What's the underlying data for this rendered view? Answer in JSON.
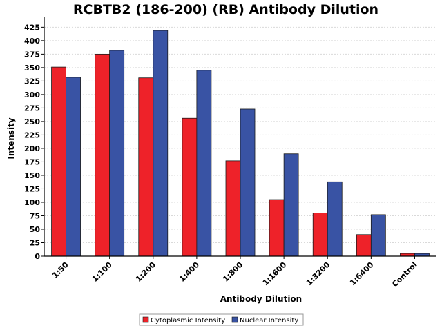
{
  "chart_data": {
    "type": "bar",
    "title": "RCBTB2 (186-200) (RB) Antibody Dilution",
    "xlabel": "Antibody Dilution",
    "ylabel": "Intensity",
    "categories": [
      "1:50",
      "1:100",
      "1:200",
      "1:400",
      "1:800",
      "1:1600",
      "1:3200",
      "1:6400",
      "Control"
    ],
    "series": [
      {
        "name": "Cytoplasmic Intensity",
        "color": "#ee2229",
        "values": [
          351,
          375,
          331,
          256,
          177,
          105,
          80,
          40,
          5
        ]
      },
      {
        "name": "Nuclear Intensity",
        "color": "#3953a4",
        "values": [
          332,
          382,
          419,
          345,
          273,
          190,
          138,
          77,
          5
        ]
      }
    ],
    "ylim": [
      0,
      437
    ],
    "yticks": [
      0,
      25,
      50,
      75,
      100,
      125,
      150,
      175,
      200,
      225,
      250,
      275,
      300,
      325,
      350,
      375,
      400,
      425
    ],
    "grid": true,
    "legend_position": "bottom-center"
  }
}
